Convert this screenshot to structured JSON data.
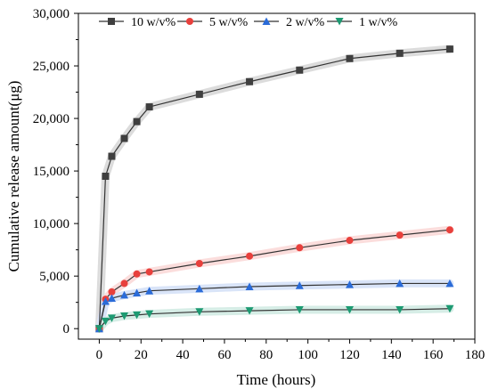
{
  "chart_data": {
    "type": "line",
    "title": "",
    "xlabel": "Time (hours)",
    "ylabel": "Cumulative release amount(μg)",
    "xlim": [
      -10,
      180
    ],
    "ylim": [
      -1000,
      30000
    ],
    "xticks": [
      0,
      20,
      40,
      60,
      80,
      100,
      120,
      140,
      160,
      180
    ],
    "xtick_labels": [
      "0",
      "20",
      "40",
      "60",
      "80",
      "100",
      "120",
      "140",
      "160",
      "180"
    ],
    "yticks": [
      0,
      5000,
      10000,
      15000,
      20000,
      25000,
      30000
    ],
    "ytick_labels": [
      "0",
      "5,000",
      "10,000",
      "15,000",
      "20,000",
      "25,000",
      "30,000"
    ],
    "grid": false,
    "legend_position": "top",
    "series": [
      {
        "name": "10 w/v%",
        "color": "#3f3f3f",
        "marker": "square",
        "x": [
          0,
          3,
          6,
          12,
          18,
          24,
          48,
          72,
          96,
          120,
          144,
          168
        ],
        "y": [
          0,
          14500,
          16400,
          18100,
          19700,
          21100,
          22300,
          23500,
          24600,
          25700,
          26200,
          26600
        ]
      },
      {
        "name": "5 w/v%",
        "color": "#e8403c",
        "marker": "circle",
        "x": [
          0,
          3,
          6,
          12,
          18,
          24,
          48,
          72,
          96,
          120,
          144,
          168
        ],
        "y": [
          0,
          2800,
          3500,
          4300,
          5200,
          5400,
          6200,
          6900,
          7700,
          8400,
          8900,
          9400
        ]
      },
      {
        "name": "2 w/v%",
        "color": "#2a6bd8",
        "marker": "triangle-up",
        "x": [
          0,
          3,
          6,
          12,
          18,
          24,
          48,
          72,
          96,
          120,
          144,
          168
        ],
        "y": [
          0,
          2600,
          2900,
          3200,
          3400,
          3600,
          3800,
          4000,
          4100,
          4200,
          4300,
          4300
        ]
      },
      {
        "name": "1 w/v%",
        "color": "#1d9a72",
        "marker": "triangle-down",
        "x": [
          0,
          3,
          6,
          12,
          18,
          24,
          48,
          72,
          96,
          120,
          144,
          168
        ],
        "y": [
          0,
          700,
          1000,
          1200,
          1300,
          1400,
          1600,
          1700,
          1800,
          1800,
          1800,
          1900
        ]
      }
    ]
  }
}
